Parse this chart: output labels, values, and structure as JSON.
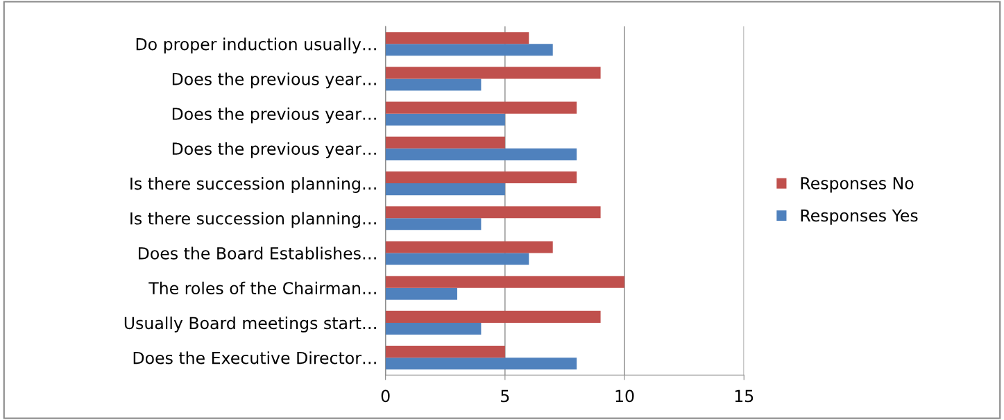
{
  "chart_data": {
    "type": "bar",
    "orientation": "horizontal",
    "categories": [
      "Do proper induction usually…",
      "Does the previous year…",
      "Does the previous year…",
      "Does the previous year…",
      "Is there succession planning…",
      "Is there succession planning…",
      "Does the Board Establishes…",
      "The roles of the Chairman…",
      "Usually Board meetings start…",
      "Does the Executive Director…"
    ],
    "series": [
      {
        "name": "Responses Yes",
        "color": "#4f81bd",
        "values": [
          7,
          4,
          5,
          8,
          5,
          4,
          6,
          3,
          4,
          8
        ]
      },
      {
        "name": "Responses No",
        "color": "#c0504d",
        "values": [
          6,
          9,
          8,
          5,
          8,
          9,
          7,
          10,
          9,
          5
        ]
      }
    ],
    "xlim": [
      0,
      15
    ],
    "xticks": [
      0,
      5,
      10,
      15
    ],
    "grid": "x",
    "legend": "right"
  }
}
